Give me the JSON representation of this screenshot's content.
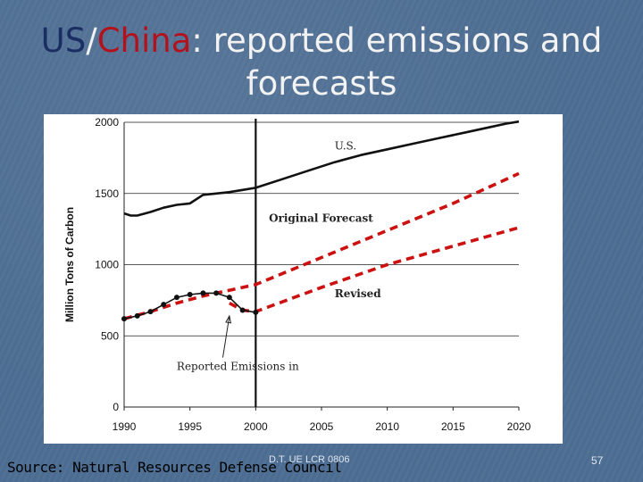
{
  "slide": {
    "title_part_us": "US",
    "title_part_slash": "/",
    "title_part_china": "China",
    "title_rest": ": reported emissions and",
    "title_line2": "forecasts",
    "source": "Source: Natural Resources Defense Council",
    "footer_center": "D.T. UE LCR 0806",
    "page_number": "57"
  },
  "colors": {
    "us_series": "#111111",
    "china_series": "#cc1111",
    "title_us": "#1b2e63",
    "title_china": "#b3121c"
  },
  "chart_data": {
    "type": "line",
    "title": "",
    "xlabel": "",
    "ylabel": "Million Tons of Carbon",
    "xlim": [
      1990,
      2020
    ],
    "ylim": [
      0,
      2000
    ],
    "xticks": [
      1990,
      1995,
      2000,
      2005,
      2010,
      2015,
      2020
    ],
    "yticks": [
      0,
      500,
      1000,
      1500,
      2000
    ],
    "grid": "horizontal",
    "vertical_marker_x": 2000,
    "series": [
      {
        "name": "U.S.",
        "label": "U.S.",
        "style": "solid",
        "x": [
          1990,
          1990.5,
          1991,
          1992,
          1993,
          1994,
          1995,
          1996,
          1997,
          1998,
          1999,
          2000,
          2002,
          2004,
          2006,
          2008,
          2010,
          2012,
          2014,
          2016,
          2018,
          2019,
          2020
        ],
        "y": [
          1360,
          1345,
          1345,
          1370,
          1400,
          1420,
          1430,
          1490,
          1500,
          1510,
          1525,
          1540,
          1600,
          1660,
          1720,
          1770,
          1810,
          1850,
          1890,
          1930,
          1970,
          1990,
          2005
        ]
      },
      {
        "name": "Original Forecast",
        "label": "Original Forecast",
        "style": "dashed",
        "x": [
          1990,
          1992,
          1994,
          1996,
          1998,
          2000,
          2005,
          2010,
          2015,
          2020
        ],
        "y": [
          620,
          670,
          730,
          780,
          820,
          860,
          1050,
          1240,
          1430,
          1640
        ]
      },
      {
        "name": "Revised",
        "label": "Revised",
        "style": "dashed",
        "x": [
          1998,
          1999,
          2000,
          2005,
          2010,
          2015,
          2020
        ],
        "y": [
          730,
          680,
          670,
          840,
          1000,
          1130,
          1260
        ]
      },
      {
        "name": "Reported Emissions",
        "label": "Reported Emissions in",
        "style": "markers",
        "x": [
          1990,
          1991,
          1992,
          1993,
          1994,
          1995,
          1996,
          1997,
          1998,
          1999,
          2000
        ],
        "y": [
          620,
          640,
          670,
          720,
          770,
          790,
          800,
          800,
          770,
          680,
          665
        ]
      }
    ],
    "annotations": [
      {
        "text": "U.S.",
        "x": 2006,
        "y": 1810
      },
      {
        "text": "Original Forecast",
        "x": 2001,
        "y": 1300
      },
      {
        "text": "Revised",
        "x": 2006,
        "y": 770
      },
      {
        "text": "Reported Emissions in",
        "x": 1994,
        "y": 260
      }
    ]
  }
}
